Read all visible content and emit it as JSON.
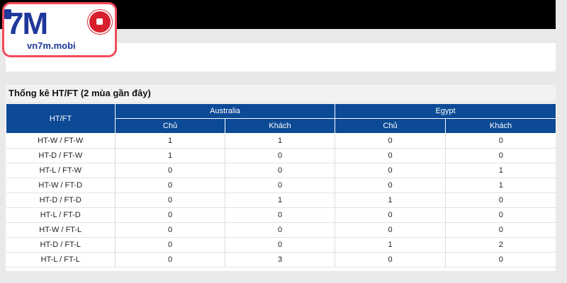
{
  "logo": {
    "main": "7M",
    "sub": "vn7m.mobi"
  },
  "section_title": "Thống kê HT/FT (2 mùa gần đây)",
  "table": {
    "first_col_header": "HT/FT",
    "teams": [
      "Australia",
      "Egypt"
    ],
    "subheaders": [
      "Chủ",
      "Khách",
      "Chủ",
      "Khách"
    ],
    "rows": [
      {
        "label": "HT-W / FT-W",
        "values": [
          "1",
          "1",
          "0",
          "0"
        ]
      },
      {
        "label": "HT-D / FT-W",
        "values": [
          "1",
          "0",
          "0",
          "0"
        ]
      },
      {
        "label": "HT-L / FT-W",
        "values": [
          "0",
          "0",
          "0",
          "1"
        ]
      },
      {
        "label": "HT-W / FT-D",
        "values": [
          "0",
          "0",
          "0",
          "1"
        ]
      },
      {
        "label": "HT-D / FT-D",
        "values": [
          "0",
          "1",
          "1",
          "0"
        ]
      },
      {
        "label": "HT-L / FT-D",
        "values": [
          "0",
          "0",
          "0",
          "0"
        ]
      },
      {
        "label": "HT-W / FT-L",
        "values": [
          "0",
          "0",
          "0",
          "0"
        ]
      },
      {
        "label": "HT-D / FT-L",
        "values": [
          "0",
          "0",
          "1",
          "2"
        ]
      },
      {
        "label": "HT-L / FT-L",
        "values": [
          "0",
          "3",
          "0",
          "0"
        ]
      }
    ]
  },
  "colors": {
    "header_bg": "#0c4a96",
    "logo_border": "#f24a5a",
    "logo_text": "#20389a"
  }
}
